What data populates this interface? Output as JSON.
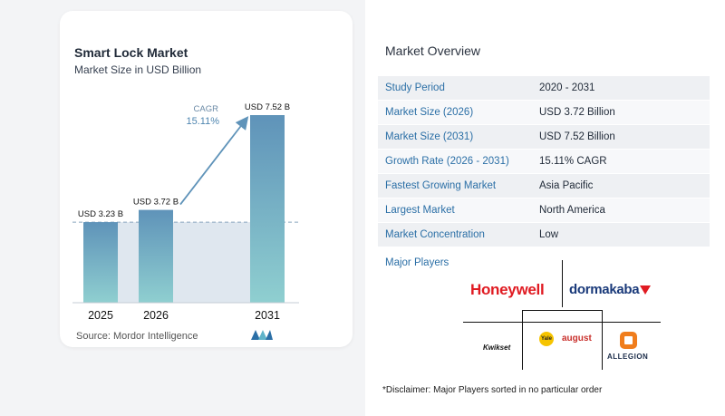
{
  "chart_data": {
    "type": "bar",
    "title": "Smart Lock Market",
    "subtitle": "Market Size in USD Billion",
    "categories": [
      "2025",
      "2026",
      "2031"
    ],
    "values": [
      3.23,
      3.72,
      7.52
    ],
    "value_labels": [
      "USD 3.23 B",
      "USD 3.72 B",
      "USD 7.52 B"
    ],
    "ylim": [
      0,
      7.52
    ],
    "cagr_label": "CAGR",
    "cagr_value": "15.11%",
    "colors": {
      "bar_top": "#5f93b9",
      "bar_bottom": "#8fcfd0",
      "band": "#dfe7ef",
      "arrow": "#5f93b9"
    },
    "grid": false
  },
  "source": "Source:  Mordor Intelligence",
  "overview": {
    "title": "Market Overview",
    "rows": [
      {
        "label": "Study Period",
        "value": "2020 - 2031"
      },
      {
        "label": "Market Size (2026)",
        "value": "USD 3.72 Billion"
      },
      {
        "label": "Market Size (2031)",
        "value": "USD 7.52 Billion"
      },
      {
        "label": "Growth Rate (2026 - 2031)",
        "value": "15.11% CAGR"
      },
      {
        "label": "Fastest Growing Market",
        "value": "Asia Pacific"
      },
      {
        "label": "Largest Market",
        "value": "North America"
      },
      {
        "label": "Market Concentration",
        "value": "Low"
      }
    ]
  },
  "players": {
    "title": "Major Players",
    "logos": {
      "honeywell": "Honeywell",
      "dormakaba": "dormakaba",
      "kwikset": "Kwikset",
      "yale": "Yale",
      "august": "august",
      "allegion": "ALLEGION"
    }
  },
  "disclaimer": "*Disclaimer: Major Players sorted in no particular order"
}
